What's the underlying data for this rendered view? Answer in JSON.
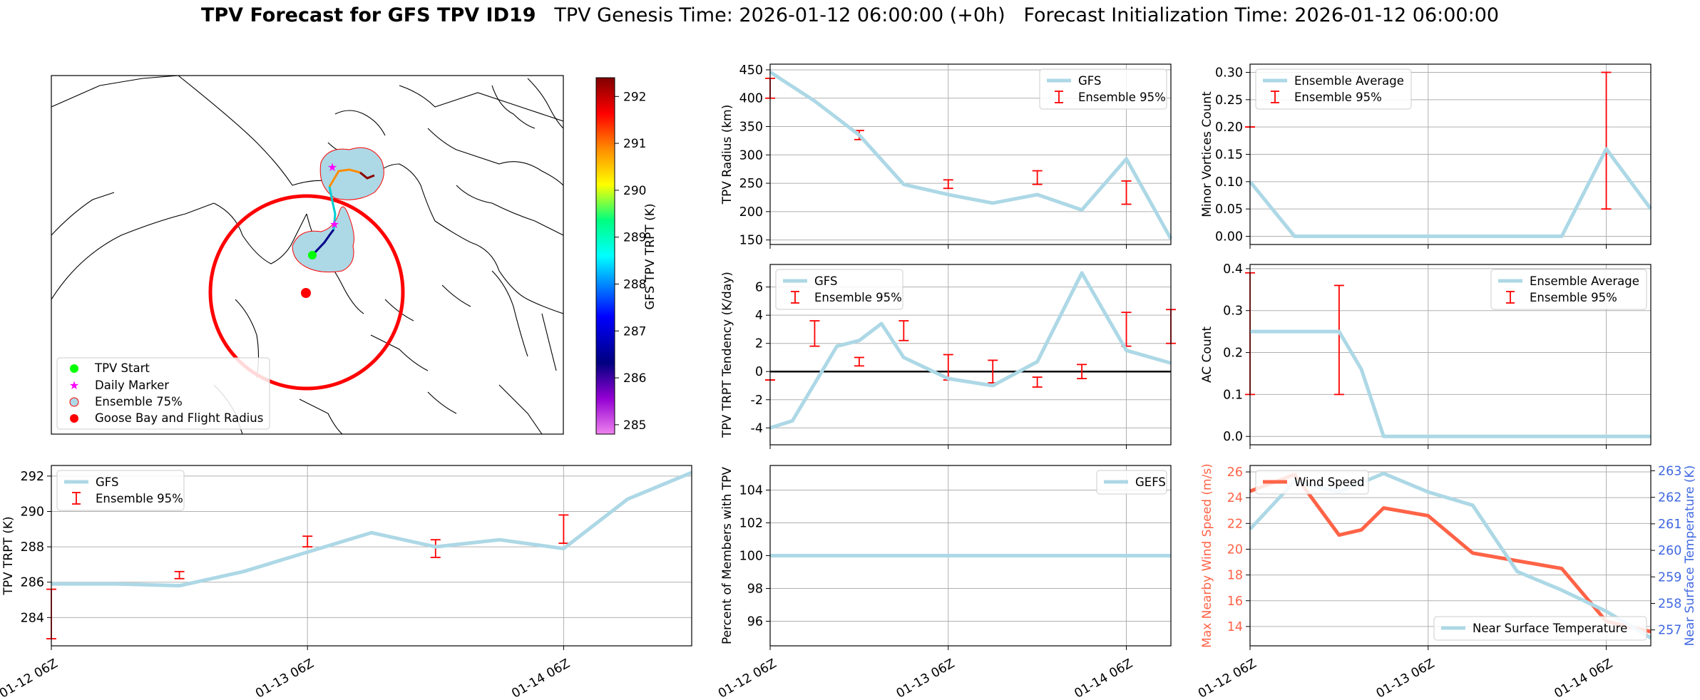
{
  "suptitle": {
    "bold": "TPV Forecast for GFS TPV ID19",
    "genesis": "TPV Genesis Time: 2026-01-12 06:00:00 (+0h)",
    "init": "Forecast Initialization Time: 2026-01-12 06:00:00"
  },
  "colors": {
    "gfs_line": "#add8e6",
    "error_bar": "#ff0000",
    "wind_line": "#ff6347",
    "temp_axis": "#4169e1",
    "grid": "#b0b0b0"
  },
  "time_ticks": [
    "01-12 06Z",
    "01-13 06Z",
    "01-14 06Z"
  ],
  "map": {
    "colorbar_label": "GFS TPV TRPT (K)",
    "colorbar_ticks": [
      285,
      286,
      287,
      288,
      289,
      290,
      291,
      292
    ],
    "colorbar_range": [
      284.8,
      292.4
    ],
    "legend": [
      "TPV Start",
      "Daily Marker",
      "Ensemble 75%",
      "Goose Bay and Flight Radius"
    ],
    "legend_colors": [
      "#00ff00",
      "#ff00ff",
      "#add8e6",
      "#ff0000"
    ]
  },
  "chart_data": [
    {
      "id": "trpt",
      "type": "line",
      "ylabel": "TPV TRPT (K)",
      "ylim": [
        282.4,
        292.6
      ],
      "xlim": [
        0,
        2.5
      ],
      "yticks": [
        284,
        286,
        288,
        290,
        292
      ],
      "grid": true,
      "legend_position": "top-left",
      "series": [
        {
          "name": "GFS",
          "x": [
            0,
            0.25,
            0.5,
            0.75,
            1.0,
            1.25,
            1.5,
            1.75,
            2.0,
            2.25,
            2.5
          ],
          "values": [
            285.9,
            285.9,
            285.8,
            286.6,
            287.7,
            288.8,
            288.0,
            288.4,
            287.9,
            290.7,
            292.2
          ]
        }
      ],
      "errorbars": {
        "name": "Ensemble 95%",
        "x": [
          0,
          0.5,
          1.0,
          1.5,
          2.0
        ],
        "low": [
          282.8,
          286.2,
          288.0,
          287.4,
          288.2
        ],
        "high": [
          285.6,
          286.6,
          288.6,
          288.4,
          289.8
        ]
      }
    },
    {
      "id": "radius",
      "type": "line",
      "ylabel": "TPV Radius (km)",
      "ylim": [
        142,
        460
      ],
      "xlim": [
        0,
        2.25
      ],
      "yticks": [
        150,
        200,
        250,
        300,
        350,
        400,
        450
      ],
      "grid": true,
      "legend_position": "top-right",
      "series": [
        {
          "name": "GFS",
          "x": [
            0,
            0.25,
            0.5,
            0.75,
            1.0,
            1.25,
            1.5,
            1.75,
            2.0,
            2.25
          ],
          "values": [
            446,
            395,
            335,
            248,
            230,
            215,
            230,
            203,
            293,
            152
          ]
        }
      ],
      "errorbars": {
        "name": "Ensemble 95%",
        "x": [
          0,
          0.5,
          1.0,
          1.5,
          2.0
        ],
        "low": [
          400,
          327,
          241,
          248,
          213
        ],
        "high": [
          435,
          343,
          256,
          272,
          254
        ]
      }
    },
    {
      "id": "minor",
      "type": "line",
      "ylabel": "Minor Vortices Count",
      "ylim": [
        -0.015,
        0.315
      ],
      "xlim": [
        0,
        2.25
      ],
      "yticks": [
        0.0,
        0.05,
        0.1,
        0.15,
        0.2,
        0.25,
        0.3
      ],
      "ytick_labels": [
        "0.00",
        "0.05",
        "0.10",
        "0.15",
        "0.20",
        "0.25",
        "0.30"
      ],
      "grid": true,
      "legend_position": "top-left",
      "series": [
        {
          "name": "Ensemble Average",
          "x": [
            0,
            0.25,
            0.5,
            0.75,
            1.0,
            1.25,
            1.5,
            1.75,
            2.0,
            2.25
          ],
          "values": [
            0.1,
            0.0,
            0.0,
            0.0,
            0.0,
            0.0,
            0.0,
            0.0,
            0.16,
            0.05
          ]
        }
      ],
      "errorbars": {
        "name": "Ensemble 95%",
        "x": [
          0,
          0.5,
          1.0,
          1.5,
          2.0
        ],
        "low": [
          0.2,
          0.0,
          0.0,
          0.0,
          0.05
        ],
        "high": [
          0.2,
          0.0,
          0.0,
          0.0,
          0.3
        ]
      }
    },
    {
      "id": "tendency",
      "type": "line",
      "ylabel": "TPV TRPT Tendency (K/day)",
      "ylim": [
        -5.2,
        7.6
      ],
      "xlim": [
        0,
        2.25
      ],
      "yticks": [
        -4,
        -2,
        0,
        2,
        4,
        6
      ],
      "grid": true,
      "zero_line": true,
      "legend_position": "top-left",
      "series": [
        {
          "name": "GFS",
          "x": [
            0,
            0.125,
            0.375,
            0.5,
            0.625,
            0.75,
            1.0,
            1.25,
            1.5,
            1.75,
            2.0,
            2.25
          ],
          "values": [
            -4.0,
            -3.5,
            1.8,
            2.2,
            3.4,
            1.0,
            -0.5,
            -1.0,
            0.7,
            7.0,
            1.5,
            0.6
          ]
        }
      ],
      "errorbars": {
        "name": "Ensemble 95%",
        "x": [
          0,
          0.25,
          0.5,
          0.75,
          1.0,
          1.25,
          1.5,
          1.75,
          2.0,
          2.25
        ],
        "low": [
          -0.6,
          1.8,
          0.4,
          2.2,
          -0.6,
          -0.8,
          -1.1,
          -0.5,
          1.8,
          2.0
        ],
        "high": [
          -0.6,
          3.6,
          1.0,
          3.6,
          1.2,
          0.8,
          -0.4,
          0.5,
          4.2,
          4.4
        ]
      }
    },
    {
      "id": "ac",
      "type": "line",
      "ylabel": "AC Count",
      "ylim": [
        -0.02,
        0.41
      ],
      "xlim": [
        0,
        2.25
      ],
      "yticks": [
        0.0,
        0.1,
        0.2,
        0.3,
        0.4
      ],
      "ytick_labels": [
        "0.0",
        "0.1",
        "0.2",
        "0.3",
        "0.4"
      ],
      "grid": true,
      "legend_position": "top-right",
      "series": [
        {
          "name": "Ensemble Average",
          "x": [
            0,
            0.25,
            0.5,
            0.625,
            0.75,
            1.0,
            1.25,
            1.5,
            1.75,
            2.0,
            2.25
          ],
          "values": [
            0.25,
            0.25,
            0.25,
            0.16,
            0.0,
            0.0,
            0.0,
            0.0,
            0.0,
            0.0,
            0.0
          ]
        }
      ],
      "errorbars": {
        "name": "Ensemble 95%",
        "x": [
          0,
          0.5,
          1.0,
          1.5,
          2.0
        ],
        "low": [
          0.1,
          0.1,
          0.0,
          0.0,
          0.0
        ],
        "high": [
          0.39,
          0.36,
          0.0,
          0.0,
          0.0
        ]
      }
    },
    {
      "id": "members",
      "type": "line",
      "ylabel": "Percent of Members with TPV",
      "ylim": [
        94.5,
        105.5
      ],
      "xlim": [
        0,
        2.25
      ],
      "yticks": [
        96,
        98,
        100,
        102,
        104
      ],
      "grid": true,
      "legend_position": "top-right",
      "series": [
        {
          "name": "GEFS",
          "x": [
            0,
            2.25
          ],
          "values": [
            100,
            100
          ]
        }
      ]
    },
    {
      "id": "wind_temp",
      "type": "line",
      "ylabel": "Max Nearby Wind Speed (m/s)",
      "ylabel_right": "Near Surface Temperature (K)",
      "ylim": [
        12.5,
        26.5
      ],
      "ylim_right": [
        256.4,
        263.2
      ],
      "xlim": [
        0,
        2.25
      ],
      "yticks": [
        14,
        16,
        18,
        20,
        22,
        24,
        26
      ],
      "yticks_right": [
        257,
        258,
        259,
        260,
        261,
        262,
        263
      ],
      "grid": true,
      "legend_position": "top-left",
      "series": [
        {
          "name": "Wind Speed",
          "axis": "left",
          "x": [
            0,
            0.25,
            0.5,
            0.625,
            0.75,
            1.0,
            1.25,
            1.5,
            1.75,
            2.0,
            2.25
          ],
          "values": [
            24.5,
            25.8,
            21.1,
            21.5,
            23.2,
            22.6,
            19.7,
            19.1,
            18.5,
            14.4,
            13.6
          ]
        },
        {
          "name": "Near Surface Temperature",
          "axis": "right",
          "x": [
            0,
            0.25,
            0.5,
            0.75,
            1.0,
            1.25,
            1.5,
            1.75,
            2.0,
            2.25
          ],
          "values": [
            260.8,
            262.6,
            262.2,
            262.9,
            262.2,
            261.7,
            259.2,
            258.5,
            257.7,
            256.7
          ]
        }
      ]
    }
  ]
}
